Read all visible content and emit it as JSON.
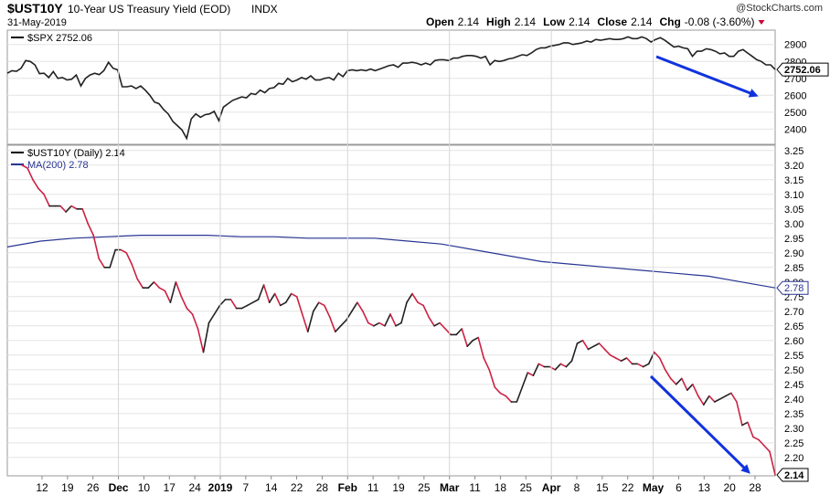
{
  "header": {
    "symbol": "$UST10Y",
    "description": "10-Year US Treasury Yield (EOD)",
    "exchange": "INDX",
    "date": "31-May-2019",
    "watermark": "@StockCharts.com",
    "quote": [
      {
        "label": "Open",
        "value": "2.14"
      },
      {
        "label": "High",
        "value": "2.14"
      },
      {
        "label": "Low",
        "value": "2.14"
      },
      {
        "label": "Close",
        "value": "2.14"
      },
      {
        "label": "Chg",
        "value": "-0.08 (-3.60%)"
      }
    ],
    "down_color": "#cc0033"
  },
  "chart_data": [
    {
      "type": "line",
      "panel": "upper",
      "legend": "$SPX 2752.06",
      "series": [
        {
          "name": "$SPX",
          "color": "#222222",
          "values": [
            2730,
            2745,
            2742,
            2760,
            2805,
            2800,
            2780,
            2728,
            2730,
            2705,
            2740,
            2700,
            2705,
            2690,
            2695,
            2720,
            2655,
            2700,
            2720,
            2730,
            2722,
            2745,
            2795,
            2760,
            2750,
            2650,
            2650,
            2655,
            2640,
            2655,
            2630,
            2600,
            2560,
            2550,
            2515,
            2490,
            2445,
            2420,
            2395,
            2345,
            2460,
            2490,
            2470,
            2485,
            2490,
            2505,
            2450,
            2530,
            2550,
            2570,
            2580,
            2590,
            2585,
            2610,
            2605,
            2630,
            2615,
            2640,
            2645,
            2670,
            2665,
            2700,
            2680,
            2690,
            2705,
            2695,
            2715,
            2690,
            2690,
            2700,
            2705,
            2690,
            2730,
            2710,
            2745,
            2750,
            2745,
            2750,
            2745,
            2755,
            2745,
            2755,
            2765,
            2775,
            2780,
            2765,
            2790,
            2790,
            2795,
            2790,
            2780,
            2790,
            2780,
            2805,
            2810,
            2810,
            2805,
            2820,
            2820,
            2830,
            2835,
            2835,
            2830,
            2820,
            2830,
            2780,
            2805,
            2800,
            2805,
            2815,
            2820,
            2830,
            2840,
            2835,
            2850,
            2870,
            2880,
            2880,
            2890,
            2895,
            2900,
            2910,
            2910,
            2900,
            2905,
            2910,
            2920,
            2915,
            2930,
            2925,
            2930,
            2935,
            2930,
            2930,
            2935,
            2945,
            2935,
            2935,
            2945,
            2935,
            2915,
            2930,
            2940,
            2925,
            2905,
            2885,
            2890,
            2880,
            2875,
            2830,
            2860,
            2860,
            2875,
            2870,
            2860,
            2845,
            2850,
            2830,
            2830,
            2860,
            2870,
            2850,
            2830,
            2810,
            2800,
            2780,
            2780,
            2752
          ]
        }
      ],
      "y_ticks": [
        2400,
        2500,
        2600,
        2700,
        2800,
        2900
      ],
      "ylim": [
        2310,
        2985
      ],
      "last_label": "2752.06"
    },
    {
      "type": "line",
      "panel": "lower",
      "legend": "$UST10Y (Daily) 2.14",
      "series": [
        {
          "name": "$UST10Y",
          "color": "#222222",
          "down_color": "#cc2244",
          "values": [
            3.2,
            3.19,
            3.15,
            3.12,
            3.1,
            3.06,
            3.06,
            3.06,
            3.04,
            3.06,
            3.05,
            3.05,
            3.0,
            2.96,
            2.88,
            2.85,
            2.85,
            2.91,
            2.91,
            2.9,
            2.86,
            2.81,
            2.78,
            2.78,
            2.8,
            2.78,
            2.77,
            2.73,
            2.8,
            2.75,
            2.71,
            2.69,
            2.64,
            2.56,
            2.66,
            2.69,
            2.72,
            2.74,
            2.74,
            2.71,
            2.71,
            2.72,
            2.73,
            2.74,
            2.79,
            2.73,
            2.76,
            2.72,
            2.73,
            2.76,
            2.75,
            2.69,
            2.63,
            2.7,
            2.73,
            2.72,
            2.68,
            2.63,
            2.65,
            2.67,
            2.7,
            2.73,
            2.7,
            2.66,
            2.65,
            2.66,
            2.65,
            2.69,
            2.65,
            2.66,
            2.73,
            2.76,
            2.73,
            2.72,
            2.68,
            2.65,
            2.66,
            2.64,
            2.62,
            2.62,
            2.64,
            2.58,
            2.6,
            2.61,
            2.54,
            2.5,
            2.44,
            2.42,
            2.41,
            2.39,
            2.39,
            2.44,
            2.49,
            2.48,
            2.52,
            2.51,
            2.51,
            2.5,
            2.52,
            2.51,
            2.53,
            2.59,
            2.6,
            2.57,
            2.58,
            2.59,
            2.57,
            2.55,
            2.54,
            2.53,
            2.54,
            2.52,
            2.52,
            2.51,
            2.52,
            2.56,
            2.54,
            2.5,
            2.47,
            2.45,
            2.47,
            2.43,
            2.45,
            2.41,
            2.38,
            2.41,
            2.39,
            2.4,
            2.41,
            2.42,
            2.39,
            2.31,
            2.32,
            2.27,
            2.26,
            2.24,
            2.22,
            2.14
          ]
        },
        {
          "name": "MA(200) 2.78",
          "color": "#283593",
          "values": [
            2.92,
            2.94,
            2.95,
            2.955,
            2.96,
            2.96,
            2.96,
            2.955,
            2.955,
            2.95,
            2.95,
            2.95,
            2.94,
            2.93,
            2.91,
            2.89,
            2.87,
            2.86,
            2.85,
            2.84,
            2.83,
            2.82,
            2.8,
            2.78
          ]
        }
      ],
      "y_ticks": [
        2.2,
        2.25,
        2.3,
        2.35,
        2.4,
        2.45,
        2.5,
        2.55,
        2.6,
        2.65,
        2.7,
        2.75,
        2.8,
        2.85,
        2.9,
        2.95,
        3.0,
        3.05,
        3.1,
        3.15,
        3.2,
        3.25
      ],
      "ylim": [
        2.137,
        3.268
      ],
      "last_label": "2.14",
      "ma_label": "2.78"
    }
  ],
  "x_axis": {
    "labels": [
      {
        "text": "12",
        "bold": false
      },
      {
        "text": "19",
        "bold": false
      },
      {
        "text": "26",
        "bold": false
      },
      {
        "text": "Dec",
        "bold": true
      },
      {
        "text": "10",
        "bold": false
      },
      {
        "text": "17",
        "bold": false
      },
      {
        "text": "24",
        "bold": false
      },
      {
        "text": "2019",
        "bold": true
      },
      {
        "text": "7",
        "bold": false
      },
      {
        "text": "14",
        "bold": false
      },
      {
        "text": "22",
        "bold": false
      },
      {
        "text": "28",
        "bold": false
      },
      {
        "text": "Feb",
        "bold": true
      },
      {
        "text": "11",
        "bold": false
      },
      {
        "text": "19",
        "bold": false
      },
      {
        "text": "25",
        "bold": false
      },
      {
        "text": "Mar",
        "bold": true
      },
      {
        "text": "11",
        "bold": false
      },
      {
        "text": "18",
        "bold": false
      },
      {
        "text": "25",
        "bold": false
      },
      {
        "text": "Apr",
        "bold": true
      },
      {
        "text": "8",
        "bold": false
      },
      {
        "text": "15",
        "bold": false
      },
      {
        "text": "22",
        "bold": false
      },
      {
        "text": "May",
        "bold": true
      },
      {
        "text": "6",
        "bold": false
      },
      {
        "text": "13",
        "bold": false
      },
      {
        "text": "20",
        "bold": false
      },
      {
        "text": "28",
        "bold": false
      }
    ]
  },
  "annotations": {
    "arrow_color": "#1133dd"
  }
}
